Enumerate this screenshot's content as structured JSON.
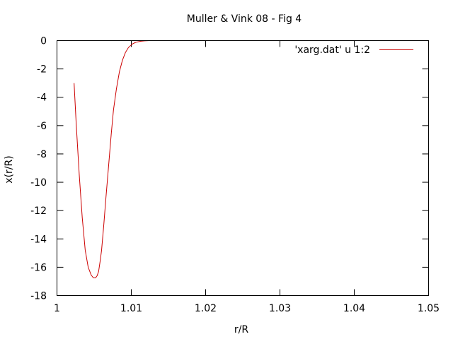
{
  "chart_data": {
    "type": "line",
    "title": "Muller & Vink 08 - Fig 4",
    "xlabel": "r/R",
    "ylabel": "x(r/R)",
    "xlim": [
      1,
      1.05
    ],
    "ylim": [
      -18,
      0
    ],
    "xticks": [
      {
        "value": 1,
        "label": "1"
      },
      {
        "value": 1.01,
        "label": "1.01"
      },
      {
        "value": 1.02,
        "label": "1.02"
      },
      {
        "value": 1.03,
        "label": "1.03"
      },
      {
        "value": 1.04,
        "label": "1.04"
      },
      {
        "value": 1.05,
        "label": "1.05"
      }
    ],
    "yticks": [
      {
        "value": 0,
        "label": "0"
      },
      {
        "value": -2,
        "label": "-2"
      },
      {
        "value": -4,
        "label": "-4"
      },
      {
        "value": -6,
        "label": "-6"
      },
      {
        "value": -8,
        "label": "-8"
      },
      {
        "value": -10,
        "label": "-10"
      },
      {
        "value": -12,
        "label": "-12"
      },
      {
        "value": -14,
        "label": "-14"
      },
      {
        "value": -16,
        "label": "-16"
      },
      {
        "value": -18,
        "label": "-18"
      }
    ],
    "grid": false,
    "legend": "top-right",
    "series": [
      {
        "name": "'xarg.dat' u 1:2",
        "color": "#cc0000",
        "x": [
          1.0023,
          1.0026,
          1.003,
          1.0034,
          1.0038,
          1.0042,
          1.0046,
          1.0049,
          1.0052,
          1.0054,
          1.0056,
          1.0058,
          1.006,
          1.0063,
          1.0066,
          1.007,
          1.0073,
          1.0076,
          1.008,
          1.0084,
          1.0088,
          1.0092,
          1.0096,
          1.0101,
          1.0106,
          1.0112,
          1.0118,
          1.0125,
          1.0132
        ],
        "y": [
          -3.0,
          -6.0,
          -9.5,
          -12.5,
          -14.8,
          -16.0,
          -16.55,
          -16.75,
          -16.75,
          -16.6,
          -16.3,
          -15.6,
          -14.8,
          -13.0,
          -11.0,
          -8.5,
          -6.6,
          -4.9,
          -3.4,
          -2.2,
          -1.4,
          -0.85,
          -0.5,
          -0.25,
          -0.12,
          -0.05,
          -0.02,
          0.0,
          0.0
        ]
      }
    ]
  }
}
